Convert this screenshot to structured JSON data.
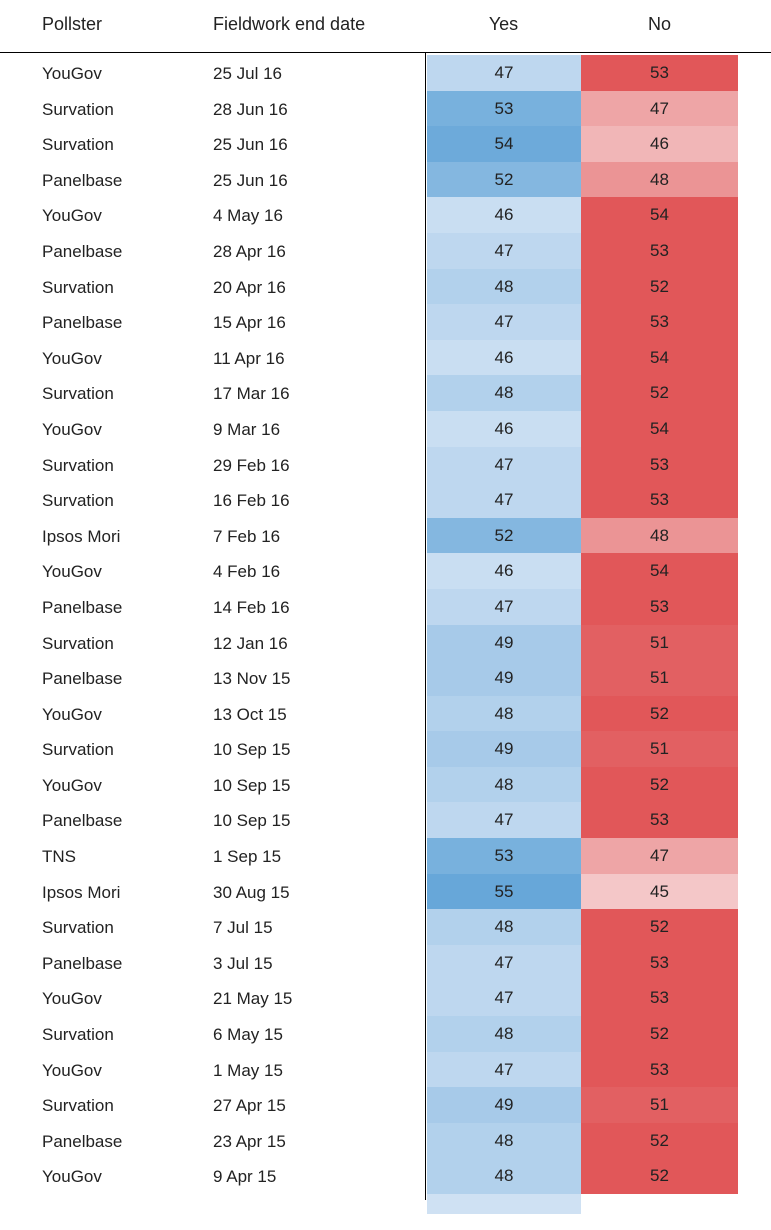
{
  "chart_data": {
    "type": "table",
    "columns": [
      "Pollster",
      "Fieldwork end date",
      "Yes",
      "No"
    ],
    "colors": {
      "yes_dark": "#67a7d9",
      "yes_light": "#cfe1f3",
      "no_dark": "#e15759",
      "no_light": "#f5d0d0"
    },
    "rows": [
      {
        "pollster": "YouGov",
        "date": "25 Jul 16",
        "yes": 47,
        "no": 53
      },
      {
        "pollster": "Survation",
        "date": "28 Jun 16",
        "yes": 53,
        "no": 47
      },
      {
        "pollster": "Survation",
        "date": "25 Jun 16",
        "yes": 54,
        "no": 46
      },
      {
        "pollster": "Panelbase",
        "date": "25 Jun 16",
        "yes": 52,
        "no": 48
      },
      {
        "pollster": "YouGov",
        "date": "4 May 16",
        "yes": 46,
        "no": 54
      },
      {
        "pollster": "Panelbase",
        "date": "28 Apr 16",
        "yes": 47,
        "no": 53
      },
      {
        "pollster": "Survation",
        "date": "20 Apr 16",
        "yes": 48,
        "no": 52
      },
      {
        "pollster": "Panelbase",
        "date": "15 Apr 16",
        "yes": 47,
        "no": 53
      },
      {
        "pollster": "YouGov",
        "date": "11 Apr 16",
        "yes": 46,
        "no": 54
      },
      {
        "pollster": "Survation",
        "date": "17 Mar 16",
        "yes": 48,
        "no": 52
      },
      {
        "pollster": "YouGov",
        "date": "9 Mar 16",
        "yes": 46,
        "no": 54
      },
      {
        "pollster": "Survation",
        "date": "29 Feb 16",
        "yes": 47,
        "no": 53
      },
      {
        "pollster": "Survation",
        "date": "16 Feb 16",
        "yes": 47,
        "no": 53
      },
      {
        "pollster": "Ipsos Mori",
        "date": "7 Feb 16",
        "yes": 52,
        "no": 48
      },
      {
        "pollster": "YouGov",
        "date": "4 Feb 16",
        "yes": 46,
        "no": 54
      },
      {
        "pollster": "Panelbase",
        "date": "14 Feb 16",
        "yes": 47,
        "no": 53
      },
      {
        "pollster": "Survation",
        "date": "12 Jan 16",
        "yes": 49,
        "no": 51
      },
      {
        "pollster": "Panelbase",
        "date": "13 Nov 15",
        "yes": 49,
        "no": 51
      },
      {
        "pollster": "YouGov",
        "date": "13 Oct 15",
        "yes": 48,
        "no": 52
      },
      {
        "pollster": "Survation",
        "date": "10 Sep 15",
        "yes": 49,
        "no": 51
      },
      {
        "pollster": "YouGov",
        "date": "10 Sep 15",
        "yes": 48,
        "no": 52
      },
      {
        "pollster": "Panelbase",
        "date": "10 Sep 15",
        "yes": 47,
        "no": 53
      },
      {
        "pollster": "TNS",
        "date": "1 Sep 15",
        "yes": 53,
        "no": 47
      },
      {
        "pollster": "Ipsos Mori",
        "date": "30 Aug 15",
        "yes": 55,
        "no": 45
      },
      {
        "pollster": "Survation",
        "date": "7 Jul 15",
        "yes": 48,
        "no": 52
      },
      {
        "pollster": "Panelbase",
        "date": "3 Jul 15",
        "yes": 47,
        "no": 53
      },
      {
        "pollster": "YouGov",
        "date": "21 May 15",
        "yes": 47,
        "no": 53
      },
      {
        "pollster": "Survation",
        "date": "6 May 15",
        "yes": 48,
        "no": 52
      },
      {
        "pollster": "YouGov",
        "date": "1 May 15",
        "yes": 47,
        "no": 53
      },
      {
        "pollster": "Survation",
        "date": "27 Apr 15",
        "yes": 49,
        "no": 51
      },
      {
        "pollster": "Panelbase",
        "date": "23 Apr 15",
        "yes": 48,
        "no": 52
      },
      {
        "pollster": "YouGov",
        "date": "9 Apr 15",
        "yes": 48,
        "no": 52
      }
    ]
  }
}
